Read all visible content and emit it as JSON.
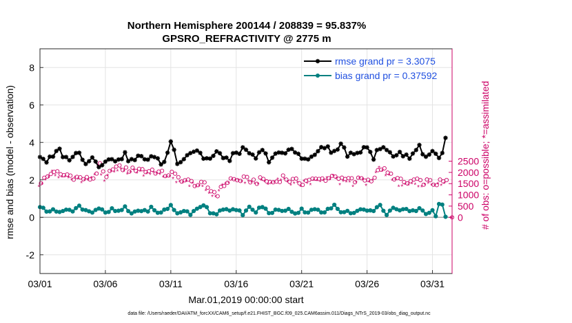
{
  "chart_data": {
    "type": "line",
    "title": "Northern Hemisphere 200144 / 208839 = 95.837%",
    "subtitle": "GPSRO_REFRACTIVITY @ 2775 m",
    "xlabel": "Mar.01,2019 00:00:00 start",
    "ylabel_left": "rmse and bias (model - observation)",
    "ylabel_right": "# of obs: o=possible; *=assimilated",
    "footnote": "data file: /Users/raeder/DAI/ATM_forcXX/CAM6_setup/f.e21.FHIST_BGC.f09_025.CAM6assim.011/Diags_NTrS_2019-03/obs_diag_output.nc",
    "x_range_days": [
      0,
      31.5
    ],
    "y_left_range": [
      -3,
      9
    ],
    "y_right_range": [
      -2500,
      7500
    ],
    "grid": true,
    "legend_position": "top-right",
    "x_ticks": [
      {
        "day": 0,
        "label": "03/01"
      },
      {
        "day": 5,
        "label": "03/06"
      },
      {
        "day": 10,
        "label": "03/11"
      },
      {
        "day": 15,
        "label": "03/16"
      },
      {
        "day": 20,
        "label": "03/21"
      },
      {
        "day": 25,
        "label": "03/26"
      },
      {
        "day": 30,
        "label": "03/31"
      }
    ],
    "y_left_ticks": [
      {
        "value": -2,
        "label": "-2"
      },
      {
        "value": 0,
        "label": "0"
      },
      {
        "value": 2,
        "label": "2"
      },
      {
        "value": 4,
        "label": "4"
      },
      {
        "value": 6,
        "label": "6"
      },
      {
        "value": 8,
        "label": "8"
      }
    ],
    "y_right_ticks": [
      {
        "value": 0,
        "label": "0"
      },
      {
        "value": 500,
        "label": "500"
      },
      {
        "value": 1000,
        "label": "1000"
      },
      {
        "value": 1500,
        "label": "1500"
      },
      {
        "value": 2000,
        "label": "2000"
      },
      {
        "value": 2500,
        "label": "2500"
      }
    ],
    "anchors": {
      "rmse": [
        [
          0,
          3.3
        ],
        [
          0.5,
          3.0
        ],
        [
          1,
          3.2
        ],
        [
          1.5,
          3.6
        ],
        [
          2,
          3.1
        ],
        [
          2.5,
          3.3
        ],
        [
          3,
          3.4
        ],
        [
          3.5,
          3.0
        ],
        [
          4,
          3.2
        ],
        [
          4.5,
          2.8
        ],
        [
          5,
          3.1
        ],
        [
          5.5,
          3.0
        ],
        [
          6,
          3.2
        ],
        [
          6.5,
          3.3
        ],
        [
          7,
          3.0
        ],
        [
          7.5,
          3.2
        ],
        [
          8,
          3.1
        ],
        [
          8.5,
          3.3
        ],
        [
          9,
          3.0
        ],
        [
          9.5,
          2.9
        ],
        [
          10,
          4.1
        ],
        [
          10.5,
          3.0
        ],
        [
          11,
          3.2
        ],
        [
          11.5,
          3.5
        ],
        [
          12,
          3.6
        ],
        [
          12.5,
          3.2
        ],
        [
          13,
          3.1
        ],
        [
          13.5,
          3.4
        ],
        [
          14,
          3.3
        ],
        [
          14.5,
          3.0
        ],
        [
          15,
          3.5
        ],
        [
          15.5,
          3.6
        ],
        [
          16,
          3.3
        ],
        [
          16.5,
          3.2
        ],
        [
          17,
          3.5
        ],
        [
          17.5,
          3.1
        ],
        [
          18,
          3.4
        ],
        [
          18.5,
          3.3
        ],
        [
          19,
          3.6
        ],
        [
          19.5,
          3.5
        ],
        [
          20,
          3.3
        ],
        [
          20.5,
          3.0
        ],
        [
          21,
          3.4
        ],
        [
          21.5,
          3.6
        ],
        [
          22,
          3.8
        ],
        [
          22.5,
          3.4
        ],
        [
          23,
          3.9
        ],
        [
          23.5,
          3.4
        ],
        [
          24,
          3.2
        ],
        [
          24.5,
          3.6
        ],
        [
          25,
          3.9
        ],
        [
          25.5,
          3.2
        ],
        [
          26,
          3.7
        ],
        [
          26.5,
          3.6
        ],
        [
          27,
          3.3
        ],
        [
          27.5,
          3.5
        ],
        [
          28,
          3.2
        ],
        [
          28.5,
          3.4
        ],
        [
          29,
          3.8
        ],
        [
          29.5,
          3.2
        ],
        [
          30,
          3.6
        ],
        [
          30.5,
          3.1
        ],
        [
          31,
          4.1
        ]
      ],
      "bias": [
        [
          0,
          0.6
        ],
        [
          0.5,
          0.3
        ],
        [
          1,
          0.5
        ],
        [
          1.5,
          0.2
        ],
        [
          2,
          0.5
        ],
        [
          2.5,
          0.3
        ],
        [
          3,
          0.6
        ],
        [
          3.5,
          0.4
        ],
        [
          4,
          0.3
        ],
        [
          4.5,
          0.5
        ],
        [
          5,
          0.2
        ],
        [
          5.5,
          0.4
        ],
        [
          6,
          0.3
        ],
        [
          6.5,
          0.5
        ],
        [
          7,
          0.2
        ],
        [
          7.5,
          0.4
        ],
        [
          8,
          0.3
        ],
        [
          8.5,
          0.5
        ],
        [
          9,
          0.2
        ],
        [
          9.5,
          0.4
        ],
        [
          10,
          0.6
        ],
        [
          10.5,
          0.2
        ],
        [
          11,
          0.4
        ],
        [
          11.5,
          0.1
        ],
        [
          12,
          0.5
        ],
        [
          12.5,
          0.7
        ],
        [
          13,
          0.3
        ],
        [
          13.5,
          0.2
        ],
        [
          14,
          0.5
        ],
        [
          14.5,
          0.3
        ],
        [
          15,
          0.4
        ],
        [
          15.5,
          0.2
        ],
        [
          16,
          0.5
        ],
        [
          16.5,
          0.3
        ],
        [
          17,
          0.6
        ],
        [
          17.5,
          0.2
        ],
        [
          18,
          0.4
        ],
        [
          18.5,
          0.3
        ],
        [
          19,
          0.5
        ],
        [
          19.5,
          0.2
        ],
        [
          20,
          0.4
        ],
        [
          20.5,
          0.3
        ],
        [
          21,
          0.5
        ],
        [
          21.5,
          0.2
        ],
        [
          22,
          0.4
        ],
        [
          22.5,
          0.6
        ],
        [
          23,
          0.3
        ],
        [
          23.5,
          0.4
        ],
        [
          24,
          0.2
        ],
        [
          24.5,
          0.5
        ],
        [
          25,
          0.3
        ],
        [
          25.5,
          0.4
        ],
        [
          26,
          0.6
        ],
        [
          26.5,
          0.2
        ],
        [
          27,
          0.5
        ],
        [
          27.5,
          0.3
        ],
        [
          28,
          0.4
        ],
        [
          28.5,
          0.3
        ],
        [
          29,
          0.5
        ],
        [
          29.5,
          0.2
        ],
        [
          30,
          0.4
        ],
        [
          30.3,
          -0.1
        ],
        [
          30.6,
          1.0
        ],
        [
          31,
          0.1
        ],
        [
          31.3,
          0.2
        ]
      ],
      "possible": [
        [
          0,
          1600
        ],
        [
          0.5,
          1800
        ],
        [
          1,
          2080
        ],
        [
          1.5,
          1850
        ],
        [
          2,
          1900
        ],
        [
          2.5,
          1800
        ],
        [
          3,
          1750
        ],
        [
          3.5,
          1700
        ],
        [
          4,
          1750
        ],
        [
          4.5,
          2280
        ],
        [
          5,
          1700
        ],
        [
          5.5,
          2250
        ],
        [
          6,
          2200
        ],
        [
          6.5,
          2150
        ],
        [
          7,
          2100
        ],
        [
          7.5,
          2200
        ],
        [
          8,
          2050
        ],
        [
          8.5,
          2100
        ],
        [
          9,
          2000
        ],
        [
          9.5,
          1900
        ],
        [
          10,
          1950
        ],
        [
          10.5,
          1750
        ],
        [
          11,
          1650
        ],
        [
          11.5,
          1550
        ],
        [
          12,
          1450
        ],
        [
          12.5,
          1450
        ],
        [
          13,
          1200
        ],
        [
          13.5,
          1050
        ],
        [
          14,
          1450
        ],
        [
          14.5,
          1700
        ],
        [
          15,
          1650
        ],
        [
          15.5,
          1700
        ],
        [
          16,
          1650
        ],
        [
          16.5,
          1600
        ],
        [
          17,
          1700
        ],
        [
          17.5,
          1550
        ],
        [
          18,
          1600
        ],
        [
          18.5,
          1800
        ],
        [
          19,
          1650
        ],
        [
          19.5,
          1600
        ],
        [
          20,
          1550
        ],
        [
          20.5,
          1700
        ],
        [
          21,
          1650
        ],
        [
          21.5,
          1700
        ],
        [
          22,
          1750
        ],
        [
          22.5,
          1900
        ],
        [
          23,
          1650
        ],
        [
          23.5,
          1700
        ],
        [
          24,
          1600
        ],
        [
          24.5,
          1750
        ],
        [
          25,
          1650
        ],
        [
          25.5,
          1800
        ],
        [
          26,
          2200
        ],
        [
          26.5,
          1950
        ],
        [
          27,
          1800
        ],
        [
          27.5,
          1600
        ],
        [
          28,
          1500
        ],
        [
          28.5,
          1650
        ],
        [
          29,
          1550
        ],
        [
          29.5,
          1600
        ],
        [
          30,
          1500
        ],
        [
          30.5,
          1550
        ],
        [
          31,
          1600
        ]
      ],
      "assimilated": [
        [
          0,
          1500
        ],
        [
          0.5,
          1700
        ],
        [
          1,
          1950
        ],
        [
          1.5,
          1750
        ],
        [
          2,
          1800
        ],
        [
          2.5,
          1700
        ],
        [
          3,
          1650
        ],
        [
          3.5,
          1600
        ],
        [
          4,
          1650
        ],
        [
          4.5,
          2180
        ],
        [
          5,
          1600
        ],
        [
          5.5,
          2150
        ],
        [
          6,
          2100
        ],
        [
          6.5,
          2050
        ],
        [
          7,
          2000
        ],
        [
          7.5,
          2100
        ],
        [
          8,
          1950
        ],
        [
          8.5,
          2000
        ],
        [
          9,
          1900
        ],
        [
          9.5,
          1800
        ],
        [
          10,
          1850
        ],
        [
          10.5,
          1650
        ],
        [
          11,
          1550
        ],
        [
          11.5,
          1450
        ],
        [
          12,
          1350
        ],
        [
          12.5,
          1350
        ],
        [
          13,
          1100
        ],
        [
          13.5,
          950
        ],
        [
          14,
          1350
        ],
        [
          14.5,
          1600
        ],
        [
          15,
          1550
        ],
        [
          15.5,
          1600
        ],
        [
          16,
          1550
        ],
        [
          16.5,
          1500
        ],
        [
          17,
          1600
        ],
        [
          17.5,
          1450
        ],
        [
          18,
          1500
        ],
        [
          18.5,
          1700
        ],
        [
          19,
          1550
        ],
        [
          19.5,
          1500
        ],
        [
          20,
          1450
        ],
        [
          20.5,
          1600
        ],
        [
          21,
          1550
        ],
        [
          21.5,
          1600
        ],
        [
          22,
          1650
        ],
        [
          22.5,
          1800
        ],
        [
          23,
          1550
        ],
        [
          23.5,
          1600
        ],
        [
          24,
          1500
        ],
        [
          24.5,
          1650
        ],
        [
          25,
          1550
        ],
        [
          25.5,
          1700
        ],
        [
          26,
          2100
        ],
        [
          26.5,
          1850
        ],
        [
          27,
          1700
        ],
        [
          27.5,
          1500
        ],
        [
          28,
          1400
        ],
        [
          28.5,
          1550
        ],
        [
          29,
          1450
        ],
        [
          29.5,
          1500
        ],
        [
          30,
          1400
        ],
        [
          30.5,
          1450
        ],
        [
          31,
          1500
        ]
      ]
    },
    "series": [
      {
        "name": "rmse",
        "legend": "rmse grand pr = 3.3075",
        "color": "#000000",
        "axis": "left"
      },
      {
        "name": "bias",
        "legend": "bias grand pr = 0.37592",
        "color": "#008080",
        "axis": "left"
      },
      {
        "name": "possible",
        "color": "#cc0066",
        "marker": "o",
        "axis": "right"
      },
      {
        "name": "assimilated",
        "color": "#cc0066",
        "marker": "*",
        "axis": "right"
      }
    ],
    "outliers": [
      {
        "day": 31.5,
        "possible": 0,
        "assimilated": 0
      }
    ]
  },
  "colors": {
    "legend_text": "#1f4fe0",
    "right_axis": "#cc0066"
  }
}
